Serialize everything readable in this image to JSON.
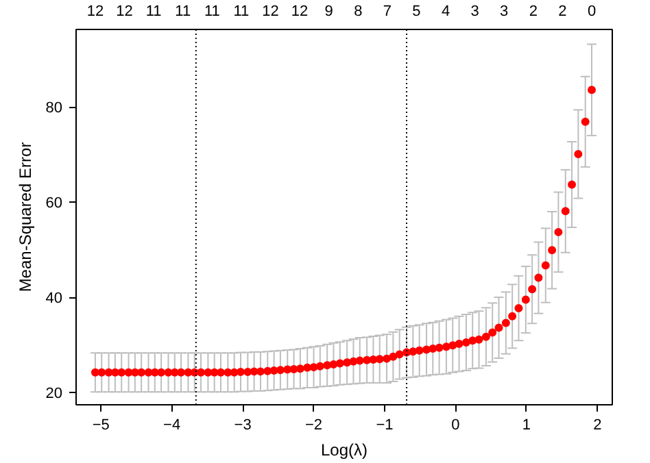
{
  "chart_data": {
    "type": "scatter",
    "xlabel": "Log(λ)",
    "ylabel": "Mean-Squared Error",
    "xlim": [
      -5.35,
      2.21
    ],
    "ylim": [
      17.4,
      96.3
    ],
    "xticks": [
      -5,
      -4,
      -3,
      -2,
      -1,
      0,
      1,
      2
    ],
    "yticks": [
      20,
      40,
      60,
      80
    ],
    "annotations": [
      "12",
      "12",
      "11",
      "11",
      "11",
      "11",
      "12",
      "12",
      "9",
      "8",
      "7",
      "5",
      "4",
      "3",
      "3",
      "2",
      "2",
      "0"
    ],
    "x": [
      -5.08,
      -4.99,
      -4.89,
      -4.8,
      -4.71,
      -4.61,
      -4.52,
      -4.43,
      -4.33,
      -4.24,
      -4.15,
      -4.05,
      -3.96,
      -3.87,
      -3.77,
      -3.68,
      -3.59,
      -3.49,
      -3.4,
      -3.31,
      -3.21,
      -3.12,
      -3.03,
      -2.93,
      -2.84,
      -2.75,
      -2.65,
      -2.56,
      -2.47,
      -2.37,
      -2.28,
      -2.19,
      -2.09,
      -2.0,
      -1.91,
      -1.81,
      -1.72,
      -1.63,
      -1.53,
      -1.44,
      -1.35,
      -1.25,
      -1.16,
      -1.07,
      -0.97,
      -0.88,
      -0.79,
      -0.69,
      -0.6,
      -0.51,
      -0.41,
      -0.32,
      -0.23,
      -0.13,
      -0.04,
      0.05,
      0.15,
      0.24,
      0.33,
      0.43,
      0.52,
      0.61,
      0.71,
      0.8,
      0.89,
      0.99,
      1.08,
      1.17,
      1.27,
      1.36,
      1.45,
      1.55,
      1.64,
      1.73,
      1.83,
      1.92
    ],
    "series": [
      {
        "color": "#ff0000",
        "values": [
          24.2,
          24.2,
          24.2,
          24.2,
          24.2,
          24.2,
          24.2,
          24.2,
          24.2,
          24.2,
          24.2,
          24.2,
          24.2,
          24.2,
          24.2,
          24.2,
          24.2,
          24.2,
          24.2,
          24.2,
          24.2,
          24.2,
          24.3,
          24.3,
          24.4,
          24.4,
          24.5,
          24.6,
          24.7,
          24.8,
          24.9,
          25.0,
          25.2,
          25.3,
          25.5,
          25.7,
          25.9,
          26.1,
          26.3,
          26.5,
          26.7,
          26.8,
          26.9,
          27.0,
          27.1,
          27.5,
          28.0,
          28.4,
          28.6,
          28.8,
          29.0,
          29.2,
          29.4,
          29.6,
          29.9,
          30.2,
          30.5,
          30.9,
          31.1,
          31.7,
          32.6,
          33.6,
          34.6,
          36.0,
          37.7,
          39.5,
          41.7,
          44.1,
          46.7,
          49.9,
          53.7,
          58.1,
          63.7,
          70.1,
          76.9,
          83.6
        ],
        "errors": [
          4.1,
          4.1,
          4.1,
          4.1,
          4.1,
          4.1,
          4.1,
          4.1,
          4.1,
          4.1,
          4.1,
          4.1,
          4.1,
          4.1,
          4.1,
          4.1,
          4.1,
          4.1,
          4.1,
          4.1,
          4.1,
          4.1,
          4.1,
          4.1,
          4.1,
          4.1,
          4.1,
          4.1,
          4.1,
          4.1,
          4.1,
          4.2,
          4.2,
          4.3,
          4.3,
          4.4,
          4.5,
          4.5,
          4.6,
          4.7,
          4.8,
          4.8,
          4.9,
          5.0,
          5.1,
          5.2,
          5.2,
          5.3,
          5.4,
          5.4,
          5.5,
          5.5,
          5.6,
          5.7,
          5.7,
          5.8,
          5.9,
          5.9,
          6.0,
          6.1,
          6.2,
          6.4,
          6.5,
          6.7,
          6.8,
          7.0,
          7.2,
          7.5,
          7.8,
          8.1,
          8.4,
          8.7,
          9.0,
          9.3,
          9.5,
          9.6
        ]
      }
    ],
    "marker": "circle",
    "grid": false,
    "ref_lines": [
      {
        "axis": "x",
        "value": -3.66,
        "line_style": "dotted",
        "color": "#000000"
      },
      {
        "axis": "x",
        "value": -0.69,
        "line_style": "dotted",
        "color": "#000000"
      }
    ]
  }
}
